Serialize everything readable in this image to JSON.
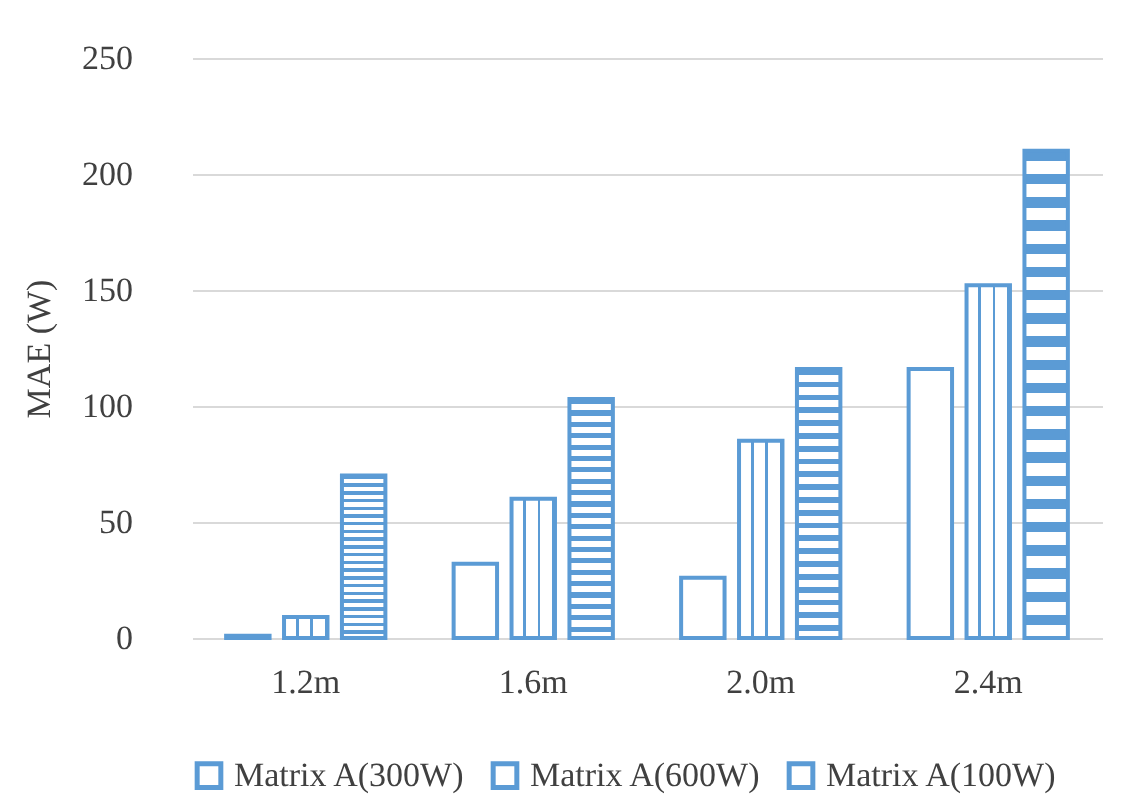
{
  "chart_data": {
    "type": "bar",
    "ylabel": "MAE (W)",
    "categories": [
      "1.2m",
      "1.6m",
      "2.0m",
      "2.4m"
    ],
    "series": [
      {
        "name": "Matrix A(300W)",
        "color": "#5b9bd5",
        "values": [
          1,
          32,
          26,
          116
        ]
      },
      {
        "name": "Matrix A(600W)",
        "color": "#5b9bd5",
        "values": [
          9,
          60,
          85,
          152
        ]
      },
      {
        "name": "Matrix A(100W)",
        "color": "#5b9bd5",
        "values": [
          70,
          103,
          116,
          210
        ]
      }
    ],
    "ylim": [
      0,
      250
    ],
    "yticks": [
      0,
      50,
      100,
      150,
      200,
      250
    ],
    "grid": "y",
    "legend": "bottom"
  }
}
